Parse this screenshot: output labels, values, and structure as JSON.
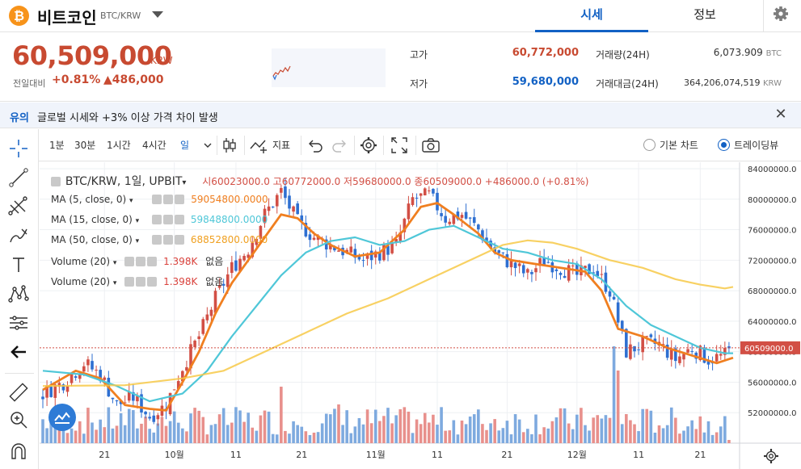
{
  "header": {
    "coin_symbol": "₿",
    "coin_name": "비트코인",
    "pair": "BTC/KRW",
    "tabs": [
      {
        "label": "시세"
      },
      {
        "label": "정보"
      }
    ]
  },
  "summary": {
    "price": "60,509,000",
    "price_unit": "KRW",
    "change_label": "전일대비",
    "change_rate": "+0.81%",
    "change_amount": "▲486,000",
    "high_label": "고가",
    "high_value": "60,772,000",
    "low_label": "저가",
    "low_value": "59,680,000",
    "volume_label": "거래량(24H)",
    "volume_value": "6,073.909",
    "volume_unit": "BTC",
    "amount_label": "거래대금(24H)",
    "amount_value": "364,206,074,519",
    "amount_unit": "KRW"
  },
  "notice": {
    "tag": "유의",
    "text": "글로벌 시세와 +3% 이상 가격 차이 발생",
    "close": "✕"
  },
  "toolbar": {
    "intervals": [
      "1분",
      "30분",
      "1시간",
      "4시간",
      "일"
    ],
    "active_interval": "일",
    "indicator_label": "지표",
    "chart_modes": [
      "기본 차트",
      "트레이딩뷰"
    ],
    "selected_mode": "트레이딩뷰"
  },
  "legend": {
    "title": "BTC/KRW, 1일, UPBIT",
    "ohlc": "시60023000.0  고60772000.0  저59680000.0  종60509000.0  +486000.0 (+0.81%)",
    "indicators": [
      {
        "label": "MA (5, close, 0)",
        "value": "59054800.0000",
        "color": "#f07f20"
      },
      {
        "label": "MA (15, close, 0)",
        "value": "59848800.0000",
        "color": "#4fc7d8"
      },
      {
        "label": "MA (50, close, 0)",
        "value": "68852800.0000",
        "color": "#f7c948"
      },
      {
        "label": "Volume (20)",
        "value": "1.398K",
        "extra": "없음",
        "color": "#d9423c"
      },
      {
        "label": "Volume (20)",
        "value": "1.398K",
        "extra": "없음",
        "color": "#d9423c"
      }
    ]
  },
  "colors": {
    "up": "#d24f45",
    "down": "#2e6fd1",
    "vol_up": "#e8908c",
    "vol_down": "#7eaadf",
    "accent": "#1261c4"
  },
  "chart_data": {
    "type": "candlestick",
    "x_tick_labels": [
      "21",
      "10월",
      "11",
      "21",
      "11월",
      "11",
      "21",
      "12월",
      "11",
      "21"
    ],
    "y_tick_labels": [
      "84000000.0",
      "80000000.0",
      "76000000.0",
      "72000000.0",
      "68000000.0",
      "64000000.0",
      "60000000.0",
      "56000000.0",
      "52000000.0"
    ],
    "last_price_label": "60509000.0",
    "ylim": [
      48000000,
      84000000
    ],
    "trend_points": [
      [
        0,
        54.5
      ],
      [
        5,
        56
      ],
      [
        10,
        58.5
      ],
      [
        14,
        57
      ],
      [
        18,
        53
      ],
      [
        22,
        54
      ],
      [
        26,
        51.5
      ],
      [
        30,
        53
      ],
      [
        34,
        58
      ],
      [
        38,
        62
      ],
      [
        42,
        67
      ],
      [
        46,
        71
      ],
      [
        50,
        73.5
      ],
      [
        54,
        78
      ],
      [
        58,
        81
      ],
      [
        62,
        77
      ],
      [
        66,
        75
      ],
      [
        70,
        74
      ],
      [
        74,
        73
      ],
      [
        78,
        72
      ],
      [
        82,
        73
      ],
      [
        86,
        74
      ],
      [
        90,
        80
      ],
      [
        94,
        80.5
      ],
      [
        98,
        77.5
      ],
      [
        102,
        78
      ],
      [
        106,
        76
      ],
      [
        110,
        73
      ],
      [
        114,
        71.5
      ],
      [
        118,
        70
      ],
      [
        122,
        72
      ],
      [
        126,
        71
      ],
      [
        130,
        70
      ],
      [
        134,
        71
      ],
      [
        138,
        68
      ],
      [
        140,
        64
      ],
      [
        142,
        60
      ],
      [
        146,
        61
      ],
      [
        150,
        61
      ],
      [
        154,
        59
      ],
      [
        158,
        60.5
      ],
      [
        162,
        59
      ],
      [
        166,
        59.5
      ],
      [
        168,
        60.5
      ]
    ],
    "series": [
      {
        "name": "MA (5, close, 0)",
        "color": "#f07f20",
        "points": [
          [
            0,
            55
          ],
          [
            8,
            57.5
          ],
          [
            14,
            56.5
          ],
          [
            20,
            53
          ],
          [
            26,
            52.5
          ],
          [
            30,
            52.3
          ],
          [
            34,
            56
          ],
          [
            38,
            60
          ],
          [
            42,
            65
          ],
          [
            46,
            69
          ],
          [
            50,
            72
          ],
          [
            54,
            75
          ],
          [
            58,
            78
          ],
          [
            62,
            77.5
          ],
          [
            66,
            75.5
          ],
          [
            70,
            74
          ],
          [
            76,
            72.5
          ],
          [
            82,
            73
          ],
          [
            88,
            76
          ],
          [
            92,
            79
          ],
          [
            96,
            79.5
          ],
          [
            100,
            78
          ],
          [
            106,
            75.5
          ],
          [
            110,
            73
          ],
          [
            114,
            72
          ],
          [
            120,
            71.5
          ],
          [
            126,
            71
          ],
          [
            132,
            70.5
          ],
          [
            136,
            68
          ],
          [
            140,
            63
          ],
          [
            146,
            62
          ],
          [
            152,
            60.5
          ],
          [
            158,
            59.5
          ],
          [
            164,
            58.5
          ],
          [
            168,
            59.2
          ]
        ]
      },
      {
        "name": "MA (15, close, 0)",
        "color": "#4fc7d8",
        "points": [
          [
            0,
            57.5
          ],
          [
            10,
            57
          ],
          [
            18,
            55.5
          ],
          [
            26,
            53.5
          ],
          [
            34,
            54.5
          ],
          [
            40,
            57.5
          ],
          [
            46,
            62
          ],
          [
            52,
            66
          ],
          [
            58,
            70
          ],
          [
            64,
            73
          ],
          [
            70,
            74.5
          ],
          [
            76,
            75
          ],
          [
            82,
            74
          ],
          [
            88,
            74.5
          ],
          [
            94,
            76
          ],
          [
            100,
            76.5
          ],
          [
            106,
            75
          ],
          [
            112,
            73.5
          ],
          [
            118,
            73
          ],
          [
            124,
            72
          ],
          [
            130,
            71.5
          ],
          [
            136,
            69.5
          ],
          [
            142,
            66
          ],
          [
            148,
            63.5
          ],
          [
            154,
            62
          ],
          [
            160,
            60.5
          ],
          [
            166,
            59.8
          ],
          [
            168,
            59.8
          ]
        ]
      },
      {
        "name": "MA (50, close, 0)",
        "color": "#f7c948",
        "points": [
          [
            0,
            55.5
          ],
          [
            20,
            55.6
          ],
          [
            34,
            56.5
          ],
          [
            44,
            57.5
          ],
          [
            54,
            60
          ],
          [
            64,
            62.5
          ],
          [
            74,
            65
          ],
          [
            84,
            67
          ],
          [
            94,
            69.5
          ],
          [
            104,
            72
          ],
          [
            112,
            74
          ],
          [
            118,
            74.6
          ],
          [
            124,
            74.3
          ],
          [
            130,
            73.5
          ],
          [
            138,
            72
          ],
          [
            146,
            71
          ],
          [
            154,
            69.5
          ],
          [
            160,
            68.8
          ],
          [
            166,
            68.3
          ],
          [
            168,
            68.5
          ]
        ]
      }
    ]
  }
}
